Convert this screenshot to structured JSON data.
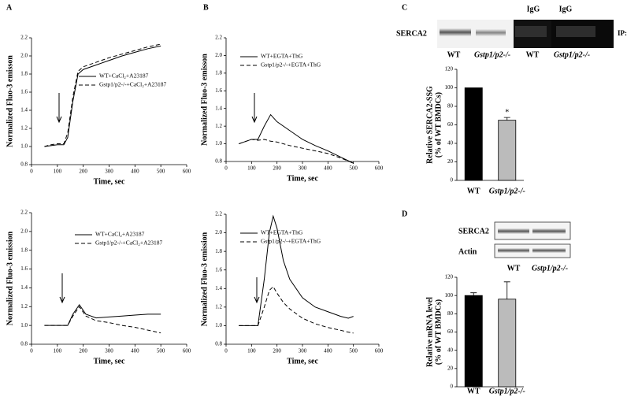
{
  "chart_data": [
    {
      "type": "line",
      "panel": "A",
      "xlabel": "Time, sec",
      "ylabel": "Normalized Fluo-3 emisson",
      "xlim": [
        0,
        600
      ],
      "xticks": [
        0,
        100,
        200,
        300,
        400,
        500,
        600
      ],
      "ylim": [
        0.8,
        2.2
      ],
      "yticks": [
        0.8,
        {
          "value": 1,
          "label": "1.0"
        },
        1.2,
        1.4,
        1.6,
        1.8,
        {
          "value": 2,
          "label": "2.0"
        },
        2.2
      ],
      "x": [
        50,
        75,
        100,
        125,
        140,
        160,
        180,
        200,
        250,
        300,
        350,
        400,
        450,
        500
      ],
      "series": [
        {
          "name": "WT+CaCl₂+A23187",
          "color": "#000000",
          "style": "solid",
          "values": [
            1.0,
            1.01,
            1.02,
            1.02,
            1.1,
            1.5,
            1.8,
            1.85,
            1.9,
            1.95,
            2.0,
            2.04,
            2.08,
            2.11
          ]
        },
        {
          "name": "Gstp1/p2-/-+CaCl₂+A23187",
          "color": "#000000",
          "style": "dashed",
          "values": [
            1.0,
            1.02,
            1.03,
            1.03,
            1.15,
            1.55,
            1.83,
            1.88,
            1.93,
            1.98,
            2.02,
            2.06,
            2.1,
            2.13
          ]
        }
      ]
    },
    {
      "type": "line",
      "panel": "B",
      "xlabel": "Time, sec",
      "ylabel": "Normalized Fluo-3 emisson",
      "xlim": [
        0,
        600
      ],
      "xticks": [
        0,
        100,
        200,
        300,
        400,
        500,
        600
      ],
      "ylim": [
        0.8,
        2.2
      ],
      "yticks": [
        0.8,
        {
          "value": 1,
          "label": "1.0"
        },
        1.2,
        1.4,
        1.6,
        1.8,
        {
          "value": 2,
          "label": "2.0"
        },
        2.2
      ],
      "x": [
        50,
        100,
        125,
        150,
        175,
        200,
        250,
        300,
        350,
        400,
        450,
        500
      ],
      "series": [
        {
          "name": "WT+EGTA+ThG",
          "color": "#000000",
          "style": "solid",
          "values": [
            1.0,
            1.05,
            1.05,
            1.2,
            1.33,
            1.25,
            1.15,
            1.05,
            0.98,
            0.92,
            0.85,
            0.78
          ]
        },
        {
          "name": "Gstp1/p2-/-+EGTA+ThG",
          "color": "#000000",
          "style": "dashed",
          "values": [
            1.0,
            1.05,
            1.04,
            1.05,
            1.03,
            1.02,
            0.98,
            0.95,
            0.92,
            0.89,
            0.84,
            0.78
          ]
        }
      ]
    },
    {
      "type": "bar",
      "panel": "C",
      "ylabel": [
        "Relative SERCA2-SSG",
        "(% of WT BMDCs)"
      ],
      "categories": [
        "WT",
        "Gstp1/p2-/-"
      ],
      "values": [
        100,
        65
      ],
      "errors": [
        0,
        3
      ],
      "colors": [
        "#000000",
        "#bbbbbb"
      ],
      "annotation": "*",
      "ylim": [
        0,
        120
      ],
      "yticks": [
        0,
        20,
        40,
        60,
        80,
        100,
        120
      ]
    },
    {
      "type": "line",
      "xlabel": "Time, sec",
      "ylabel": "Normalized Fluo-3 emission",
      "xlim": [
        0,
        600
      ],
      "xticks": [
        0,
        100,
        200,
        300,
        400,
        500,
        600
      ],
      "ylim": [
        0.8,
        2.2
      ],
      "yticks": [
        0.8,
        {
          "value": 1,
          "label": "1.0"
        },
        1.2,
        1.4,
        1.6,
        1.8,
        {
          "value": 2,
          "label": "2.0"
        },
        2.2
      ],
      "x": [
        50,
        100,
        140,
        160,
        185,
        210,
        250,
        300,
        350,
        400,
        450,
        500
      ],
      "series": [
        {
          "name": "WT+CaCl₂+A23187",
          "color": "#000000",
          "style": "solid",
          "values": [
            1.0,
            1.0,
            1.0,
            1.12,
            1.22,
            1.12,
            1.08,
            1.09,
            1.1,
            1.11,
            1.12,
            1.12
          ]
        },
        {
          "name": "Gstp1/p2-/-+CaCl₂+A23187",
          "color": "#000000",
          "style": "dashed",
          "values": [
            1.0,
            1.0,
            1.0,
            1.1,
            1.2,
            1.1,
            1.05,
            1.03,
            1.0,
            0.98,
            0.95,
            0.92
          ]
        }
      ]
    },
    {
      "type": "line",
      "xlabel": "Time, sec",
      "ylabel": "Normalized Fluo-3 emission",
      "xlim": [
        0,
        600
      ],
      "xticks": [
        0,
        100,
        200,
        300,
        400,
        500,
        600
      ],
      "ylim": [
        0.8,
        2.2
      ],
      "yticks": [
        0.8,
        {
          "value": 1,
          "label": "1.0"
        },
        1.2,
        1.4,
        1.6,
        1.8,
        {
          "value": 2,
          "label": "2.0"
        },
        2.2
      ],
      "x": [
        50,
        100,
        125,
        150,
        170,
        185,
        200,
        225,
        250,
        300,
        350,
        400,
        450,
        480,
        500
      ],
      "series": [
        {
          "name": "WT+EGTA+ThG",
          "color": "#000000",
          "style": "solid",
          "values": [
            1.0,
            1.0,
            1.0,
            1.5,
            2.0,
            2.18,
            2.05,
            1.7,
            1.5,
            1.3,
            1.2,
            1.15,
            1.1,
            1.08,
            1.1
          ]
        },
        {
          "name": "Gstp1/p2-/-+EGTA+ThG",
          "color": "#000000",
          "style": "dashed",
          "values": [
            1.0,
            1.0,
            1.0,
            1.2,
            1.38,
            1.42,
            1.35,
            1.25,
            1.18,
            1.08,
            1.02,
            0.98,
            0.95,
            0.93,
            0.92
          ]
        }
      ]
    },
    {
      "type": "bar",
      "panel": "D",
      "ylabel": [
        "Relative mRNA level",
        "(% of WT BMDCs)"
      ],
      "categories": [
        "WT",
        "Gstp1/p2-/-"
      ],
      "values": [
        100,
        96
      ],
      "errors": [
        3,
        19
      ],
      "colors": [
        "#000000",
        "#bbbbbb"
      ],
      "ylim": [
        0,
        120
      ],
      "yticks": [
        0,
        20,
        40,
        60,
        80,
        100,
        120
      ]
    }
  ],
  "blot_C": {
    "row_label": "SERCA2",
    "above_lanes": [
      "IgG",
      "IgG"
    ],
    "side_label": "IP: PSSG",
    "lanes": [
      "WT",
      "Gstp1/p2-/-",
      "WT",
      "Gstp1/p2-/-"
    ]
  },
  "blot_D": {
    "rows": [
      "SERCA2",
      "Actin"
    ],
    "lanes": [
      "WT",
      "Gstp1/p2-/-"
    ]
  }
}
